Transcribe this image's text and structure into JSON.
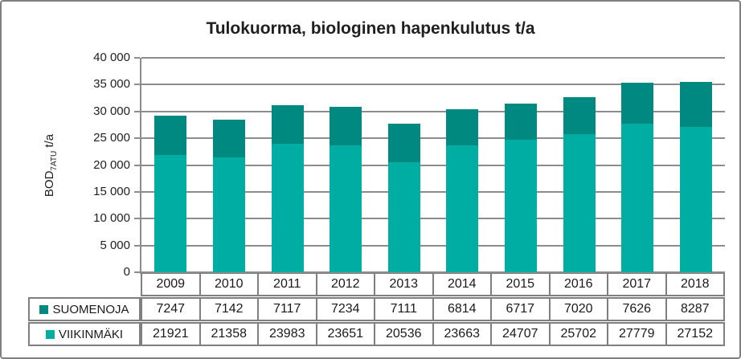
{
  "window": {
    "background_color": "#ffffff",
    "border_color": "#7f7f7f"
  },
  "chart_data": {
    "type": "bar",
    "stacked": true,
    "title": "Tulokuorma, biologinen hapenkulutus t/a",
    "ylabel": {
      "prefix": "BOD",
      "subscript": "7ATU",
      "suffix": " t/a"
    },
    "xlabel": "",
    "categories": [
      "2009",
      "2010",
      "2011",
      "2012",
      "2013",
      "2014",
      "2015",
      "2016",
      "2017",
      "2018"
    ],
    "series": [
      {
        "name": "SUOMENOJA",
        "color": "#008980",
        "values": [
          7247,
          7142,
          7117,
          7234,
          7111,
          6814,
          6717,
          7020,
          7626,
          8287
        ]
      },
      {
        "name": "VIIKINMÄKI",
        "color": "#00ada3",
        "values": [
          21921,
          21358,
          23983,
          23651,
          20536,
          23663,
          24707,
          25702,
          27779,
          27152
        ]
      }
    ],
    "stack_order_bottom_to_top": [
      "VIIKINMÄKI",
      "SUOMENOJA"
    ],
    "ylim": [
      0,
      40000
    ],
    "ytick_step": 5000,
    "ytick_labels": [
      "0",
      "5 000",
      "10 000",
      "15 000",
      "20 000",
      "25 000",
      "30 000",
      "35 000",
      "40 000"
    ],
    "grid": true,
    "gridline_color": "#8c8c8c",
    "legend_position": "data-table-left",
    "data_table_shown": true
  }
}
